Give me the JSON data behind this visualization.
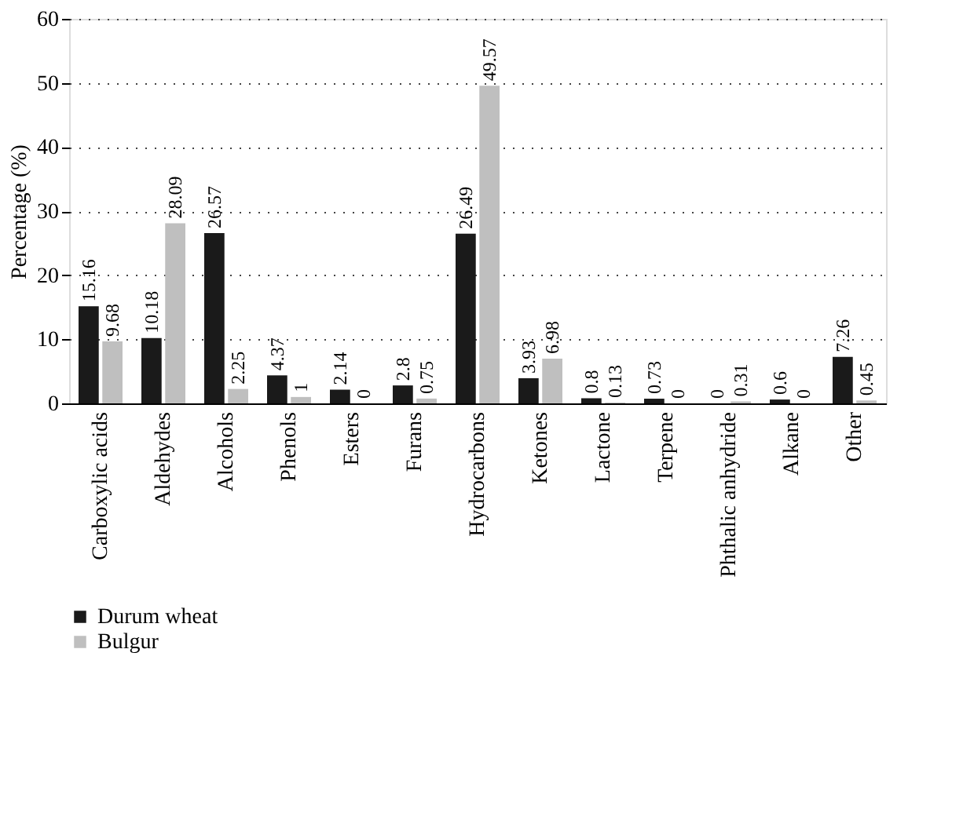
{
  "chart_data": {
    "type": "bar",
    "ylabel": "Percentage (%)",
    "categories": [
      "Carboxylic acids",
      "Aldehydes",
      "Alcohols",
      "Phenols",
      "Esters",
      "Furans",
      "Hydrocarbons",
      "Ketones",
      "Lactone",
      "Terpene",
      "Phthalic anhydride",
      "Alkane",
      "Other"
    ],
    "series": [
      {
        "name": "Durum wheat",
        "color": "#1a1a1a",
        "values": [
          15.16,
          10.18,
          26.57,
          4.37,
          2.14,
          2.8,
          26.49,
          3.93,
          0.8,
          0.73,
          0,
          0.6,
          7.26
        ]
      },
      {
        "name": "Bulgur",
        "color": "#bfbfbf",
        "values": [
          9.68,
          28.09,
          2.25,
          1,
          0,
          0.75,
          49.57,
          6.98,
          0.13,
          0,
          0.31,
          0,
          0.45
        ]
      }
    ],
    "ylim": [
      0,
      60
    ],
    "yticks": [
      0,
      10,
      20,
      30,
      40,
      50,
      60
    ],
    "grid": "y",
    "legend": "bottom left",
    "data_labels": true
  }
}
